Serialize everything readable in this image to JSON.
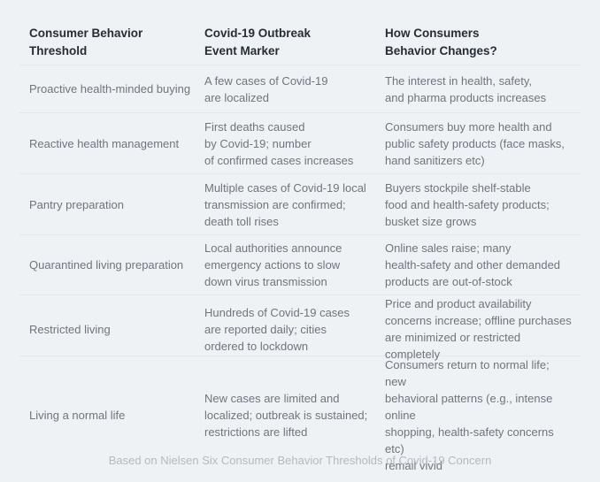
{
  "chart_data": {
    "type": "table",
    "columns": [
      "Consumer Behavior Threshold",
      "Covid-19 Outbreak Event Marker",
      "How Consumers Behavior Changes?"
    ],
    "rows": [
      [
        "Proactive health-minded buying",
        "A few cases of Covid-19 are localized",
        "The interest in health, safety, and pharma products increases"
      ],
      [
        "Reactive health management",
        "First deaths caused by Covid-19; number of confirmed cases increases",
        "Consumers buy more health and public safety products (face masks, hand sanitizers etc)"
      ],
      [
        "Pantry preparation",
        "Multiple cases of Covid-19 local transmission are confirmed; death toll rises",
        "Buyers stockpile shelf-stable food and health-safety products; busket size grows"
      ],
      [
        "Quarantined living preparation",
        "Local authorities announce emergency actions to slow down virus transmission",
        "Online sales raise; many health-safety and other demanded products are out-of-stock"
      ],
      [
        "Restricted living",
        "Hundreds of Covid-19 cases are reported daily; cities ordered to lockdown",
        "Price and product availability concerns increase; offline purchases are minimized or restricted completely"
      ],
      [
        "Living a normal life",
        "New cases are limited and localized; outbreak is sustained; restrictions are lifted",
        "Consumers return to normal life; new behavioral patterns (e.g., intense online shopping, health-safety concerns etc) remail vivid"
      ]
    ],
    "caption": "Based on Nielsen Six Consumer Behavior Thresholds of Covid-19 Concern"
  },
  "table": {
    "headers": [
      {
        "label": "Consumer Behavior\nThreshold"
      },
      {
        "label": "Covid-19 Outbreak\nEvent Marker"
      },
      {
        "label": "How Consumers\nBehavior Changes?"
      }
    ],
    "rows": [
      {
        "threshold": "Proactive health-minded buying",
        "event_marker": "A few cases of Covid-19\nare localized",
        "behavior_change": "The interest in health, safety,\nand pharma products increases"
      },
      {
        "threshold": "Reactive health management",
        "event_marker": "First deaths caused\nby Covid-19; number\nof confirmed cases increases",
        "behavior_change": "Consumers buy more health and\npublic safety products (face masks,\nhand sanitizers etc)"
      },
      {
        "threshold": "Pantry preparation",
        "event_marker": "Multiple cases of Covid-19 local\ntransmission are confirmed;\ndeath toll rises",
        "behavior_change": "Buyers stockpile shelf-stable\nfood and health-safety products;\nbusket size grows"
      },
      {
        "threshold": "Quarantined living preparation",
        "event_marker": "Local authorities announce\nemergency actions to slow\ndown virus transmission",
        "behavior_change": "Online sales raise; many\nhealth-safety and other demanded\nproducts are out-of-stock"
      },
      {
        "threshold": "Restricted living",
        "event_marker": "Hundreds of Covid-19 cases\nare reported daily; cities\nordered to lockdown",
        "behavior_change": "Price and product availability\nconcerns increase; offline purchases\nare minimized or restricted completely"
      },
      {
        "threshold": "Living a normal life",
        "event_marker": "New cases are limited and\nlocalized; outbreak is sustained;\nrestrictions are lifted",
        "behavior_change": "Consumers return to normal life; new\nbehavioral patterns (e.g., intense online\nshopping, health-safety concerns etc)\nremail vivid"
      }
    ]
  },
  "footer": {
    "caption": "Based on Nielsen Six Consumer Behavior Thresholds of Covid-19 Concern"
  },
  "colors": {
    "background": "#eff2f4",
    "divider": "#e3e7e9",
    "header_text": "#262d34",
    "body_text": "#6e757d",
    "caption_text": "#b3b9bf"
  }
}
